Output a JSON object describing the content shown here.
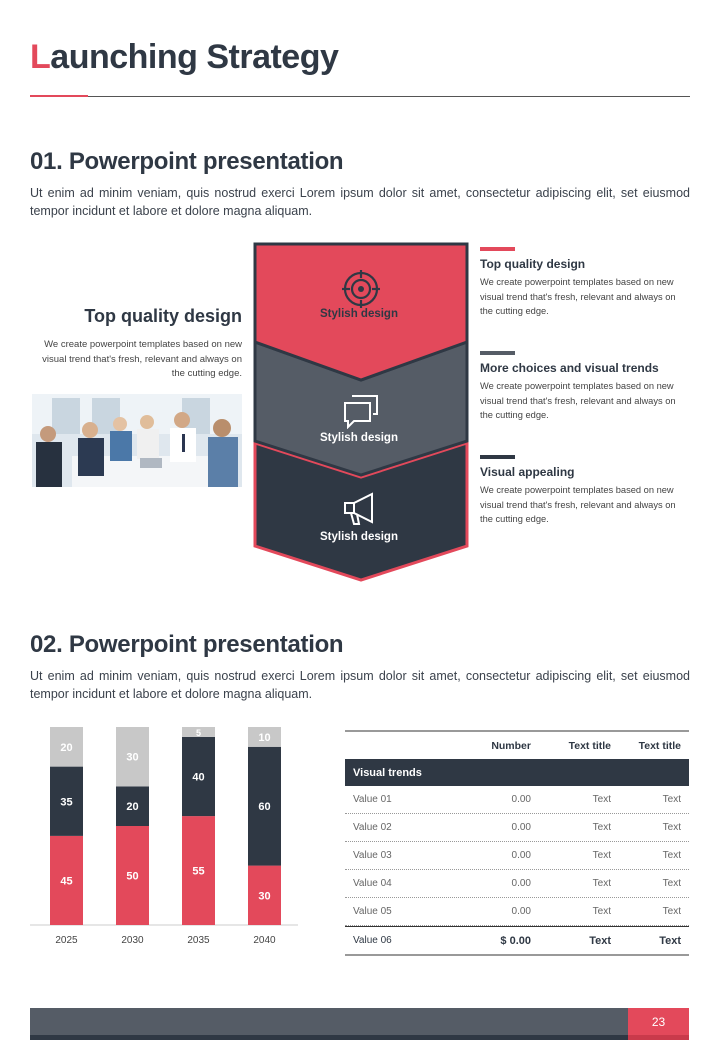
{
  "header": {
    "title_first": "L",
    "title_rest": "aunching Strategy"
  },
  "section1": {
    "heading": "01. Powerpoint presentation",
    "paragraph": "Ut enim ad minim veniam, quis nostrud exerci  Lorem ipsum dolor sit amet, consectetur adipiscing elit, set eiusmod tempor incidunt et labore et dolore magna aliquam.",
    "left_title": "Top quality design",
    "left_desc": "We create powerpoint templates based on new visual trend that's fresh, relevant and always on the cutting  edge.",
    "chevrons": [
      {
        "label": "Stylish design",
        "icon": "target-icon",
        "color": "#e3495b"
      },
      {
        "label": "Stylish design",
        "icon": "chat-bubbles-icon",
        "color": "#555c66"
      },
      {
        "label": "Stylish design",
        "icon": "megaphone-icon",
        "color": "#2f3844"
      }
    ],
    "right_items": [
      {
        "title": "Top quality  design",
        "desc": "We create powerpoint templates based on new visual trend that's fresh, relevant and always on the cutting  edge.",
        "bar_color": "#e3495b"
      },
      {
        "title": "More choices  and visual trends",
        "desc": "We create powerpoint templates based on new visual trend that's fresh, relevant and always on the cutting  edge.",
        "bar_color": "#555c66"
      },
      {
        "title": "Visual appealing",
        "desc": "We create powerpoint templates based on new visual trend that's fresh, relevant and always on the cutting  edge.",
        "bar_color": "#2f3844"
      }
    ]
  },
  "section2": {
    "heading": "02. Powerpoint presentation",
    "paragraph": "Ut enim ad minim veniam, quis nostrud exerci  Lorem ipsum dolor sit amet, consectetur adipiscing elit, set eiusmod tempor incidunt et labore et dolore magna aliquam."
  },
  "chart_data": {
    "type": "bar",
    "stacked": true,
    "categories": [
      "2025",
      "2030",
      "2035",
      "2040"
    ],
    "series": [
      {
        "values": [
          45,
          50,
          55,
          30
        ],
        "color": "#e3495b"
      },
      {
        "values": [
          35,
          20,
          40,
          60
        ],
        "color": "#2f3844"
      },
      {
        "values": [
          20,
          30,
          5,
          10
        ],
        "color": "#c8c8c8"
      }
    ],
    "ylim": [
      0,
      100
    ],
    "grid": false
  },
  "table": {
    "headers": [
      "",
      "Number",
      "Text title",
      "Text title"
    ],
    "section": "Visual trends",
    "rows": [
      [
        "Value 01",
        "0.00",
        "Text",
        "Text"
      ],
      [
        "Value 02",
        "0.00",
        "Text",
        "Text"
      ],
      [
        "Value 03",
        "0.00",
        "Text",
        "Text"
      ],
      [
        "Value 04",
        "0.00",
        "Text",
        "Text"
      ],
      [
        "Value 05",
        "0.00",
        "Text",
        "Text"
      ]
    ],
    "total": [
      "Value 06",
      "$ 0.00",
      "Text",
      "Text"
    ]
  },
  "footer": {
    "page_number": "23"
  },
  "colors": {
    "accent": "#e3495b",
    "dark": "#2f3844",
    "mid": "#555c66",
    "light": "#c8c8c8"
  }
}
